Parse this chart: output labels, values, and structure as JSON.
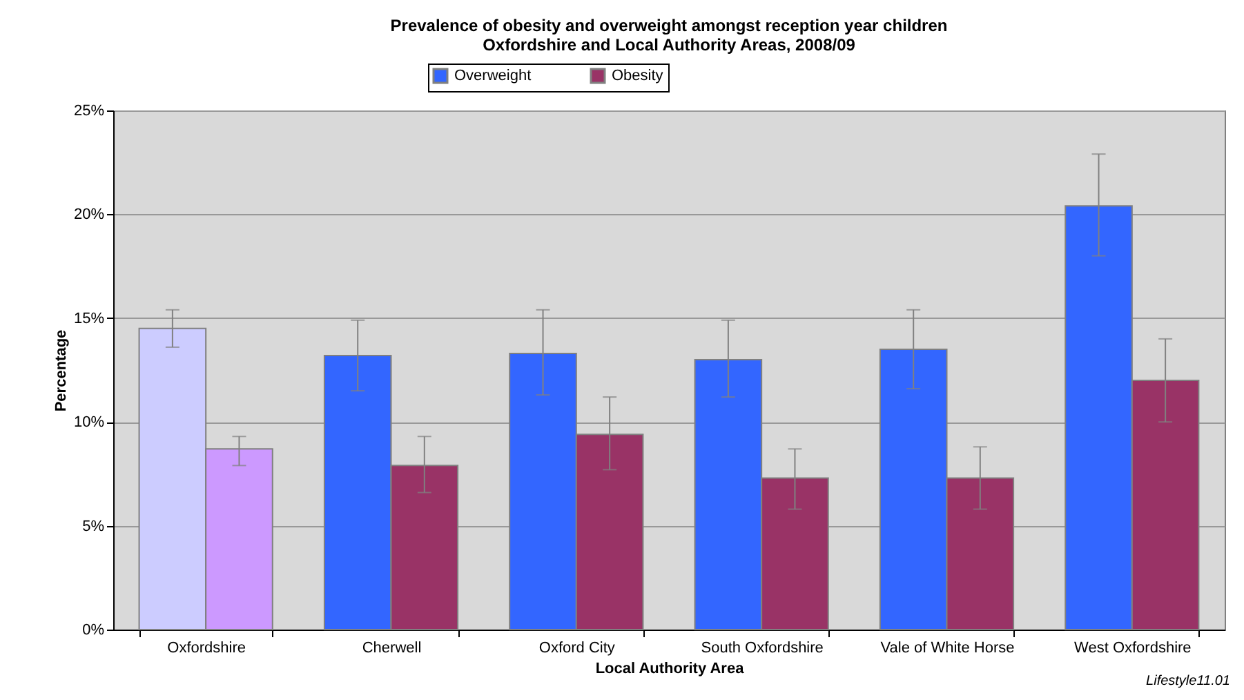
{
  "chart_data": {
    "type": "bar",
    "title": "Prevalence of obesity and overweight amongst reception year children",
    "subtitle": "Oxfordshire and Local Authority Areas, 2008/09",
    "xlabel": "Local Authority Area",
    "ylabel": "Percentage",
    "categories": [
      "Oxfordshire",
      "Cherwell",
      "Oxford City",
      "South Oxfordshire",
      "Vale of White Horse",
      "West Oxfordshire"
    ],
    "series": [
      {
        "name": "Overweight",
        "color": "#3366ff",
        "colors": [
          "#ccccff",
          "#3366ff",
          "#3366ff",
          "#3366ff",
          "#3366ff",
          "#3366ff"
        ],
        "values": [
          14.5,
          13.2,
          13.3,
          13.0,
          13.5,
          20.4
        ],
        "errors": [
          [
            13.6,
            15.4
          ],
          [
            11.5,
            14.9
          ],
          [
            11.3,
            15.4
          ],
          [
            11.2,
            14.9
          ],
          [
            11.6,
            15.4
          ],
          [
            18.0,
            22.9
          ]
        ]
      },
      {
        "name": "Obesity",
        "color": "#993366",
        "colors": [
          "#cc99ff",
          "#993366",
          "#993366",
          "#993366",
          "#993366",
          "#993366"
        ],
        "values": [
          8.7,
          7.9,
          9.4,
          7.3,
          7.3,
          12.0
        ],
        "errors": [
          [
            7.9,
            9.3
          ],
          [
            6.6,
            9.3
          ],
          [
            7.7,
            11.2
          ],
          [
            5.8,
            8.7
          ],
          [
            5.8,
            8.8
          ],
          [
            10.0,
            14.0
          ]
        ]
      }
    ],
    "ylim": [
      0,
      25
    ],
    "yticks": [
      {
        "value": 0,
        "label": "0%"
      },
      {
        "value": 5,
        "label": "5%"
      },
      {
        "value": 10,
        "label": "10%"
      },
      {
        "value": 15,
        "label": "15%"
      },
      {
        "value": 20,
        "label": "20%"
      },
      {
        "value": 25,
        "label": "25%"
      }
    ],
    "grid": "y",
    "legend": "top",
    "annotations": [
      "Lifestyle11.01"
    ]
  }
}
